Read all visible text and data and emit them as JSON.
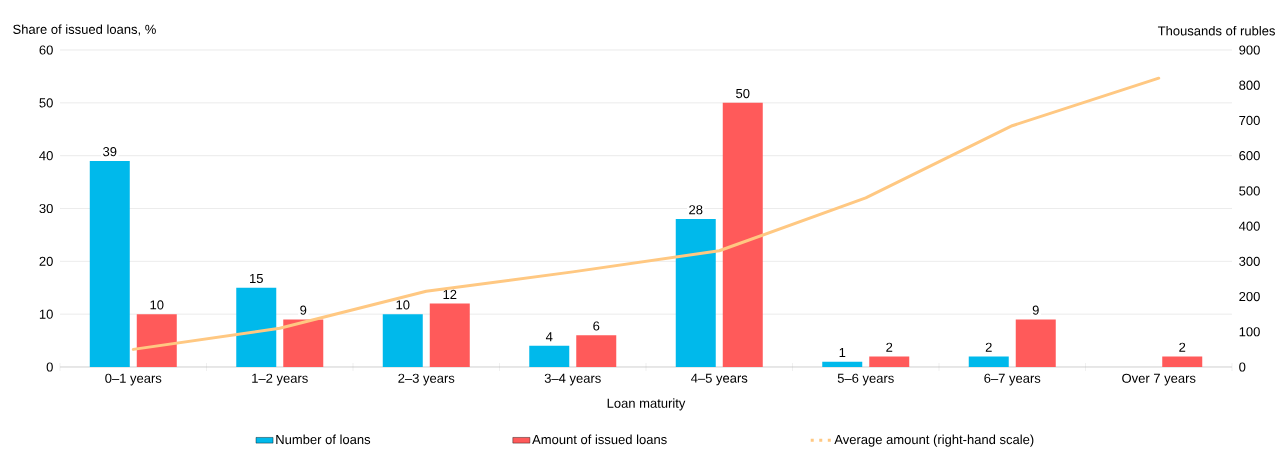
{
  "chart_data": {
    "type": "bar",
    "xlabel": "Loan maturity",
    "ylabel": "Share of issued loans, %",
    "y2label": "Thousands of rubles",
    "categories": [
      "0–1 years",
      "1–2 years",
      "2–3 years",
      "3–4 years",
      "4–5 years",
      "5–6 years",
      "6–7 years",
      "Over 7 years"
    ],
    "series": [
      {
        "name": "Number of loans",
        "color": "#00b9eb",
        "values": [
          39,
          15,
          10,
          4,
          28,
          1,
          2,
          null
        ],
        "value_labels": [
          "39",
          "15",
          "10",
          "4",
          "28",
          "1",
          "2",
          null
        ]
      },
      {
        "name": "Amount of issued loans",
        "color": "#ff5a5a",
        "values": [
          10,
          9,
          12,
          6,
          50,
          2,
          9,
          2
        ],
        "value_labels": [
          "10",
          "9",
          "12",
          "6",
          "50",
          "2",
          "9",
          "2"
        ]
      },
      {
        "name": "Average amount (right-hand scale)",
        "type": "line",
        "axis": "y2",
        "color": "#ffc882",
        "values": [
          50,
          110,
          215,
          270,
          330,
          480,
          685,
          820
        ]
      }
    ],
    "ylim": [
      0,
      60
    ],
    "yticks": [
      0,
      10,
      20,
      30,
      40,
      50,
      60
    ],
    "y2lim": [
      0,
      900
    ],
    "y2ticks": [
      0,
      100,
      200,
      300,
      400,
      500,
      600,
      700,
      800,
      900
    ],
    "grid": "y",
    "legend": "bottom"
  }
}
